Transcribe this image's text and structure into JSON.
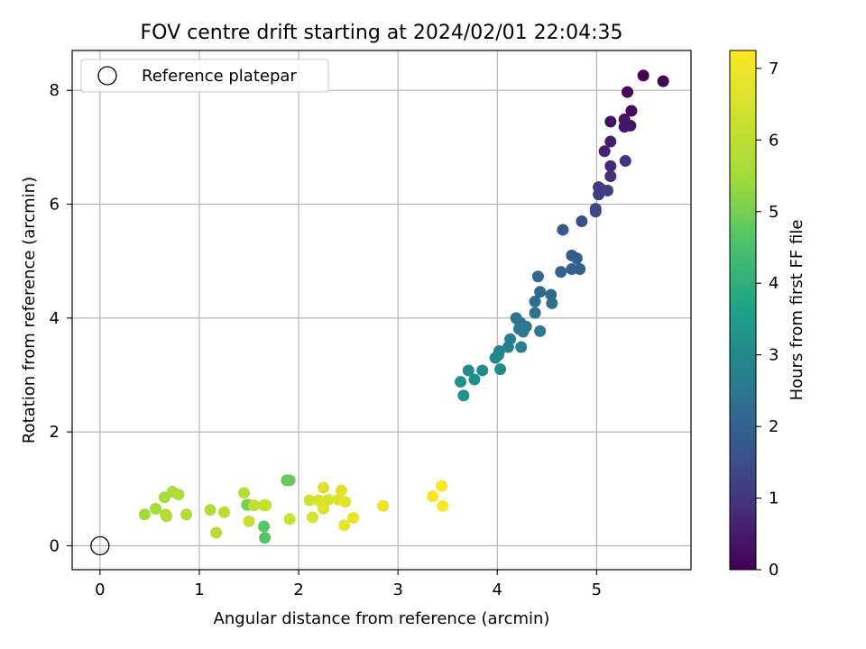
{
  "chart_data": {
    "type": "scatter",
    "title": "FOV centre drift starting at 2024/02/01 22:04:35",
    "xlabel": "Angular distance from reference (arcmin)",
    "ylabel": "Rotation from reference (arcmin)",
    "xlim": [
      -0.28,
      5.95
    ],
    "ylim": [
      -0.42,
      8.7
    ],
    "xticks": [
      0,
      1,
      2,
      3,
      4,
      5
    ],
    "yticks": [
      0,
      2,
      4,
      6,
      8
    ],
    "grid": true,
    "legend": {
      "position": "top-left",
      "entries": [
        "Reference platepar"
      ]
    },
    "colorbar": {
      "label": "Hours from first FF file",
      "colormap": "viridis",
      "range": [
        0,
        7.25
      ],
      "ticks": [
        0,
        1,
        2,
        3,
        4,
        5,
        6,
        7
      ]
    },
    "reference_point": {
      "x": 0,
      "y": 0,
      "label": "Reference platepar"
    },
    "series": [
      {
        "x": [
          5.47,
          5.67,
          5.31,
          5.35,
          5.14,
          5.28,
          5.34,
          5.28,
          5.14,
          5.08,
          5.14,
          5.14,
          5.29,
          5.02,
          5.02,
          5.04,
          5.11,
          4.99,
          4.99,
          4.85,
          4.66,
          4.75,
          4.8,
          4.83,
          4.75,
          4.64,
          4.41,
          4.43,
          4.54,
          4.55,
          4.38,
          4.38,
          4.19,
          4.23,
          4.22,
          4.29,
          4.26,
          4.43,
          4.13,
          4.11,
          4.24,
          4.02,
          4.01,
          3.98,
          3.85,
          4.03,
          3.71,
          3.77,
          3.63,
          3.66
        ],
        "y": [
          8.26,
          8.16,
          7.97,
          7.64,
          7.45,
          7.49,
          7.38,
          7.36,
          7.1,
          6.93,
          6.67,
          6.49,
          6.76,
          6.3,
          6.17,
          6.27,
          6.24,
          5.92,
          5.87,
          5.7,
          5.55,
          5.1,
          5.05,
          4.86,
          4.86,
          4.81,
          4.73,
          4.46,
          4.41,
          4.26,
          4.29,
          4.09,
          4.0,
          3.92,
          3.81,
          3.85,
          3.76,
          3.77,
          3.63,
          3.49,
          3.49,
          3.42,
          3.35,
          3.3,
          3.08,
          3.1,
          3.08,
          2.92,
          2.88,
          2.64
        ],
        "hours": [
          0.0,
          0.05,
          0.12,
          0.2,
          0.3,
          0.35,
          0.4,
          0.45,
          0.55,
          0.65,
          0.75,
          0.85,
          0.95,
          1.05,
          1.1,
          1.15,
          1.2,
          1.35,
          1.4,
          1.55,
          1.7,
          1.8,
          1.85,
          1.9,
          1.95,
          2.0,
          2.1,
          2.15,
          2.2,
          2.25,
          2.3,
          2.35,
          2.4,
          2.45,
          2.5,
          2.55,
          2.6,
          2.65,
          2.7,
          2.75,
          2.8,
          2.85,
          2.9,
          2.95,
          3.0,
          3.05,
          3.1,
          3.15,
          3.2,
          3.25
        ]
      },
      {
        "x": [
          1.66,
          1.65,
          1.88,
          1.91,
          1.49,
          1.48,
          0.45,
          0.56,
          0.65,
          0.67,
          0.73,
          0.79,
          0.87,
          0.66,
          1.11,
          1.17,
          1.25,
          1.45,
          1.55,
          1.65,
          1.67,
          1.91,
          1.5,
          2.11,
          2.14,
          2.2,
          2.25,
          2.25,
          2.24,
          2.3,
          2.4,
          2.43,
          2.47,
          2.46,
          2.55,
          2.85,
          3.35,
          3.44,
          3.45
        ],
        "y": [
          0.14,
          0.34,
          1.15,
          1.15,
          0.72,
          0.72,
          0.55,
          0.65,
          0.85,
          0.52,
          0.95,
          0.9,
          0.55,
          0.55,
          0.63,
          0.23,
          0.59,
          0.93,
          0.71,
          0.71,
          0.71,
          0.47,
          0.43,
          0.8,
          0.5,
          0.8,
          1.02,
          0.65,
          0.73,
          0.81,
          0.81,
          0.97,
          0.77,
          0.36,
          0.49,
          0.7,
          0.87,
          1.05,
          0.7
        ],
        "hours": [
          4.6,
          4.7,
          4.8,
          4.85,
          4.9,
          5.0,
          5.5,
          5.55,
          5.6,
          5.65,
          5.7,
          5.72,
          5.75,
          5.78,
          5.8,
          5.85,
          5.9,
          5.95,
          6.0,
          6.2,
          6.25,
          6.3,
          6.1,
          6.4,
          6.45,
          6.5,
          6.55,
          6.6,
          6.65,
          6.5,
          6.6,
          6.7,
          6.75,
          6.8,
          6.85,
          6.9,
          7.1,
          7.15,
          7.2
        ]
      }
    ]
  }
}
